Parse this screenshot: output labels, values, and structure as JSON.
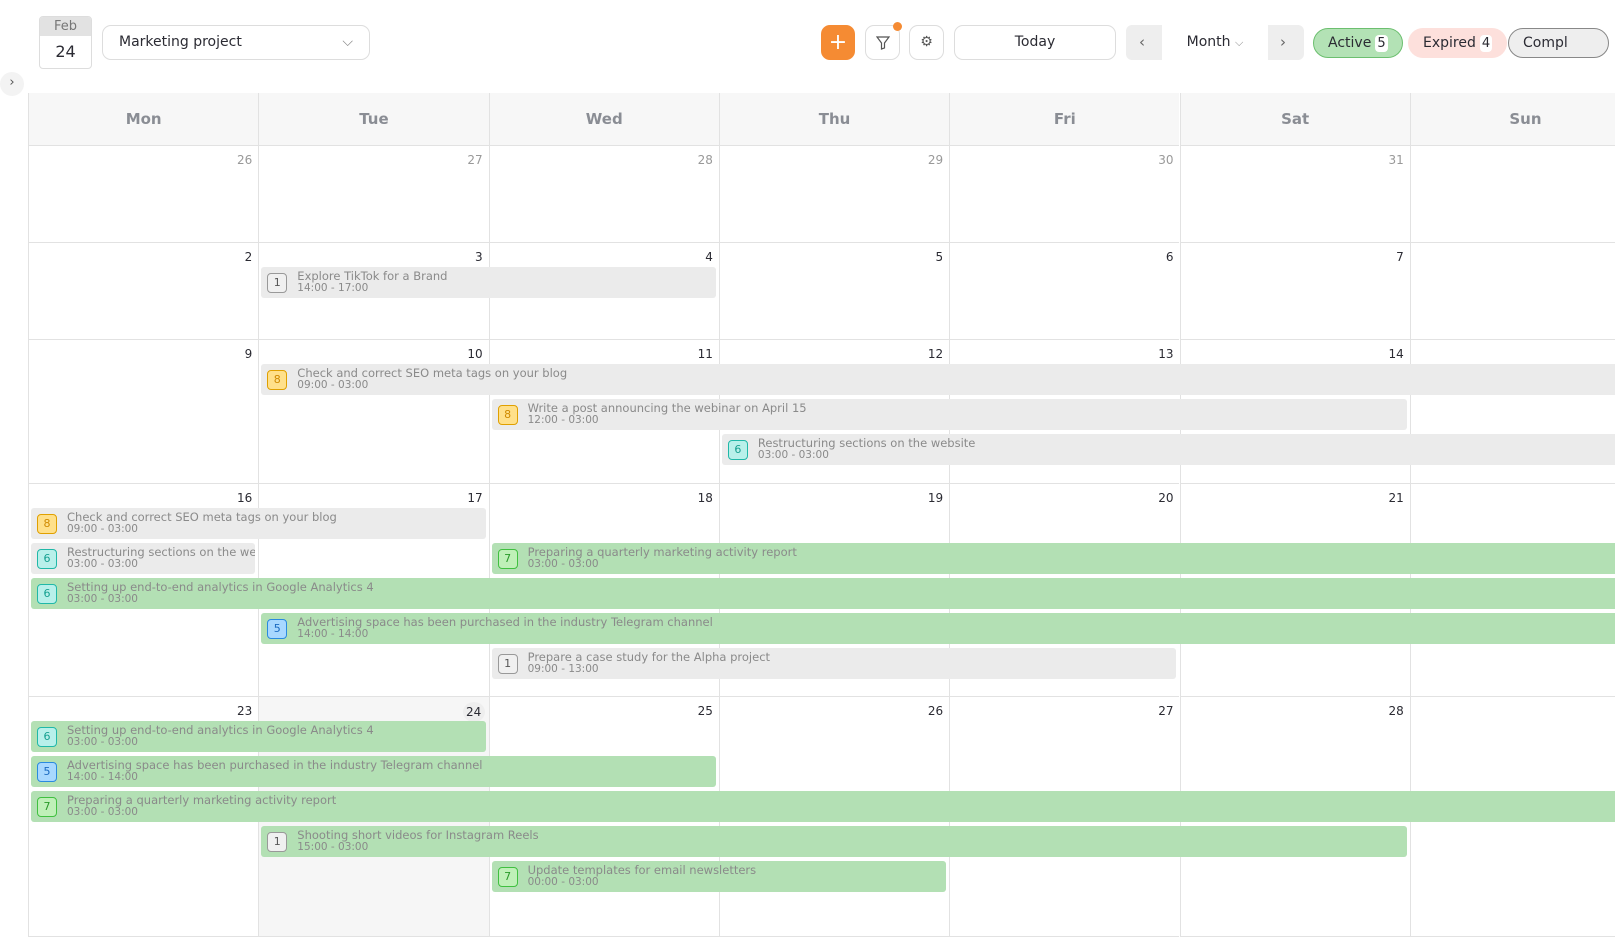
{
  "date_box": {
    "month": "Feb",
    "day": "24"
  },
  "project_select": {
    "value": "Marketing project"
  },
  "toolbar": {
    "add": "+",
    "today": "Today",
    "view": "Month",
    "prev": "‹",
    "next": "›"
  },
  "filters": [
    {
      "label": "Active",
      "count": "5"
    },
    {
      "label": "Expired",
      "count": "4"
    },
    {
      "label": "Compl"
    }
  ],
  "colors": {
    "accent": "#f58b33",
    "event_green": "#b3e0b4",
    "event_grey": "#ebebeb"
  },
  "weekdays": [
    "Mon",
    "Tue",
    "Wed",
    "Thu",
    "Fri",
    "Sat",
    "Sun"
  ],
  "today": 24,
  "weeks": [
    {
      "days": [
        "26",
        "27",
        "28",
        "29",
        "30",
        "31",
        ""
      ],
      "outside": [
        0,
        1,
        2,
        3,
        4,
        5
      ],
      "events": []
    },
    {
      "days": [
        "2",
        "3",
        "4",
        "5",
        "6",
        "7",
        ""
      ],
      "events": [
        {
          "title": "Explore TikTok for a Brand",
          "time": "14:00 - 17:00",
          "badge": "1",
          "badge_color": "grey",
          "status": "grey",
          "start": "3",
          "end": "4"
        }
      ]
    },
    {
      "days": [
        "9",
        "10",
        "11",
        "12",
        "13",
        "14",
        ""
      ],
      "events": [
        {
          "title": "Check and correct SEO meta tags on your blog",
          "time": "09:00 - 03:00",
          "badge": "8",
          "badge_color": "yellow",
          "status": "grey",
          "start": "10",
          "end": "15"
        },
        {
          "title": "Write a post announcing the webinar on April 15",
          "time": "12:00 - 03:00",
          "badge": "8",
          "badge_color": "yellow",
          "status": "grey",
          "start": "11",
          "end": "14"
        },
        {
          "title": "Restructuring sections on the website",
          "time": "03:00 - 03:00",
          "badge": "6",
          "badge_color": "teal",
          "status": "grey",
          "start": "12",
          "end": "15"
        }
      ]
    },
    {
      "days": [
        "16",
        "17",
        "18",
        "19",
        "20",
        "21",
        ""
      ],
      "events": [
        {
          "title": "Check and correct SEO meta tags on your blog",
          "time": "09:00 - 03:00",
          "badge": "8",
          "badge_color": "yellow",
          "status": "grey",
          "start": "16",
          "end": "17"
        },
        {
          "title": "Restructuring sections on the website",
          "time": "03:00 - 03:00",
          "badge": "6",
          "badge_color": "teal",
          "status": "grey",
          "start": "16",
          "end": "16"
        },
        {
          "title": "Preparing a quarterly marketing activity report",
          "time": "03:00 - 03:00",
          "badge": "7",
          "badge_color": "green",
          "status": "green",
          "start": "18",
          "end": "22"
        },
        {
          "title": "Setting up end-to-end analytics in Google Analytics 4",
          "time": "03:00 - 03:00",
          "badge": "6",
          "badge_color": "teal",
          "status": "green",
          "start": "16",
          "end": "22"
        },
        {
          "title": "Advertising space has been purchased in the industry Telegram channel",
          "time": "14:00 - 14:00",
          "badge": "5",
          "badge_color": "blue",
          "status": "green",
          "start": "17",
          "end": "22"
        },
        {
          "title": "Prepare a case study for the Alpha project",
          "time": "09:00 - 13:00",
          "badge": "1",
          "badge_color": "grey",
          "status": "grey",
          "start": "18",
          "end": "20"
        }
      ]
    },
    {
      "days": [
        "23",
        "24",
        "25",
        "26",
        "27",
        "28",
        ""
      ],
      "events": [
        {
          "title": "Setting up end-to-end analytics in Google Analytics 4",
          "time": "03:00 - 03:00",
          "badge": "6",
          "badge_color": "teal",
          "status": "green",
          "start": "23",
          "end": "24"
        },
        {
          "title": "Advertising space has been purchased in the industry Telegram channel",
          "time": "14:00 - 14:00",
          "badge": "5",
          "badge_color": "blue",
          "status": "green",
          "start": "23",
          "end": "25"
        },
        {
          "title": "Preparing a quarterly marketing activity report",
          "time": "03:00 - 03:00",
          "badge": "7",
          "badge_color": "green",
          "status": "green",
          "start": "23",
          "end": "29"
        },
        {
          "title": "Shooting short videos for Instagram Reels",
          "time": "15:00 - 03:00",
          "badge": "1",
          "badge_color": "grey",
          "status": "green",
          "start": "24",
          "end": "28"
        },
        {
          "title": "Update templates for email newsletters",
          "time": "00:00 - 03:00",
          "badge": "7",
          "badge_color": "green",
          "status": "green",
          "start": "25",
          "end": "26"
        }
      ]
    }
  ]
}
